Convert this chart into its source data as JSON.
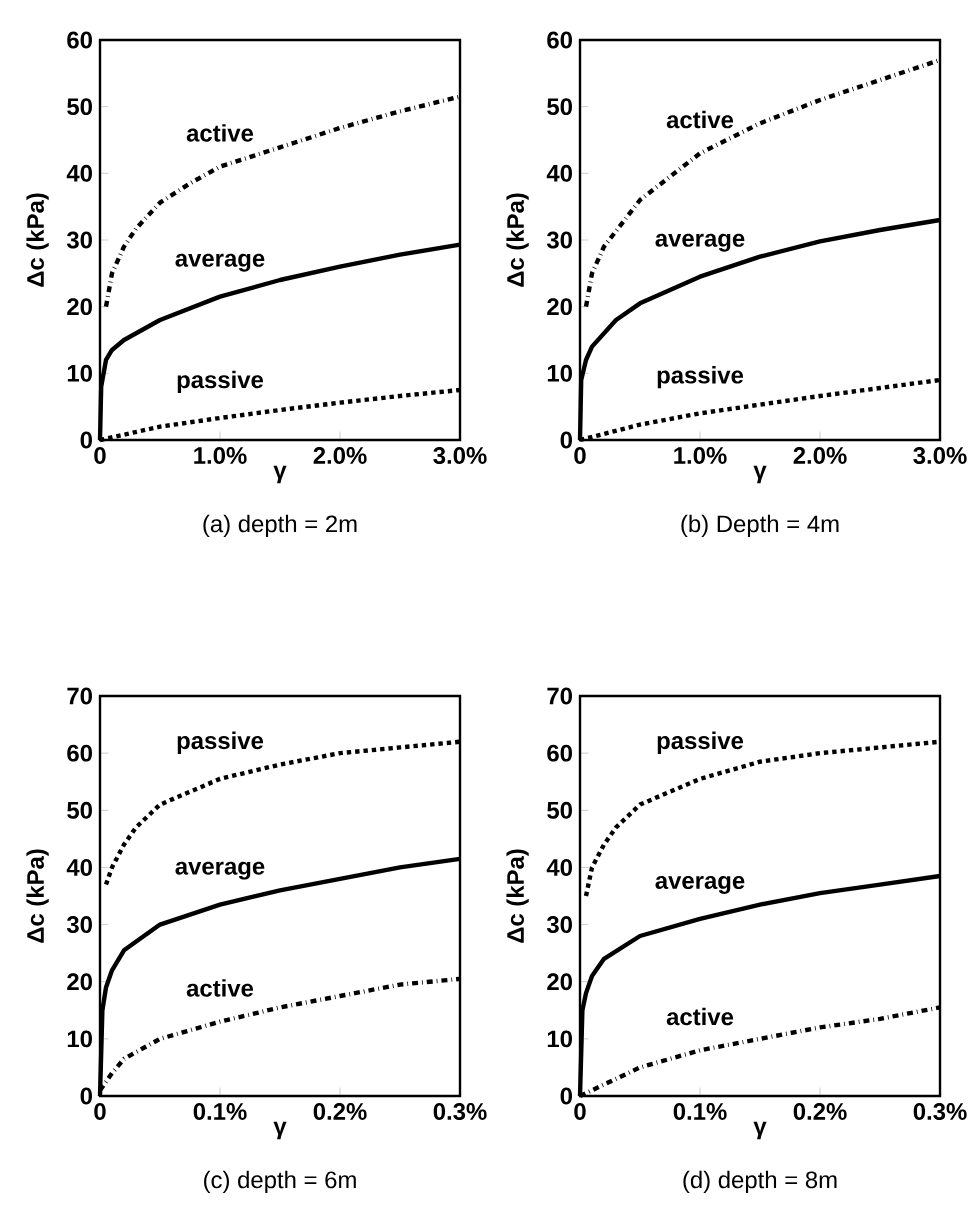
{
  "chart_data": [
    {
      "type": "line",
      "title": "(a) depth = 2m",
      "xlabel": "γ",
      "ylabel": "Δc (kPa)",
      "xlim": [
        0,
        3
      ],
      "ylim": [
        0,
        60
      ],
      "xticks": [
        0,
        {
          "value": 1,
          "label": "1.0%"
        },
        {
          "value": 2,
          "label": "2.0%"
        },
        {
          "value": 3,
          "label": "3.0%"
        }
      ],
      "yticks": [
        0,
        10,
        20,
        30,
        40,
        50,
        60
      ],
      "series": [
        {
          "name": "active",
          "color": "#000000",
          "line_style": "dashdot",
          "x": [
            0.05,
            0.1,
            0.2,
            0.3,
            0.5,
            0.75,
            1,
            1.5,
            2,
            2.5,
            3
          ],
          "values": [
            20,
            25,
            29,
            31.7,
            35.6,
            38.5,
            41,
            43.9,
            46.8,
            49.3,
            51.5
          ]
        },
        {
          "name": "average",
          "color": "#000000",
          "line_style": "solid",
          "x": [
            0,
            0.01,
            0.05,
            0.1,
            0.2,
            0.5,
            1,
            1.5,
            2,
            2.5,
            3
          ],
          "values": [
            0,
            8,
            12,
            13.5,
            15,
            18,
            21.5,
            24,
            26,
            27.8,
            29.3
          ]
        },
        {
          "name": "passive",
          "color": "#000000",
          "line_style": "dotted",
          "x": [
            0,
            0.5,
            1,
            1.5,
            2,
            2.5,
            3
          ],
          "values": [
            0,
            2,
            3.3,
            4.5,
            5.6,
            6.6,
            7.5
          ]
        }
      ]
    },
    {
      "type": "line",
      "title": "(b) Depth = 4m",
      "xlabel": "γ",
      "ylabel": "Δc (kPa)",
      "xlim": [
        0,
        3
      ],
      "ylim": [
        0,
        60
      ],
      "xticks": [
        0,
        {
          "value": 1,
          "label": "1.0%"
        },
        {
          "value": 2,
          "label": "2.0%"
        },
        {
          "value": 3,
          "label": "3.0%"
        }
      ],
      "yticks": [
        0,
        10,
        20,
        30,
        40,
        50,
        60
      ],
      "series": [
        {
          "name": "active",
          "color": "#000000",
          "line_style": "dashdot",
          "x": [
            0.05,
            0.1,
            0.2,
            0.5,
            1,
            1.5,
            2,
            2.5,
            3
          ],
          "values": [
            20,
            25,
            29,
            36,
            43,
            47.5,
            51,
            54,
            57
          ]
        },
        {
          "name": "average",
          "color": "#000000",
          "line_style": "solid",
          "x": [
            0,
            0.01,
            0.05,
            0.1,
            0.3,
            0.5,
            1,
            1.5,
            2,
            2.5,
            3
          ],
          "values": [
            0,
            9,
            12,
            14,
            18,
            20.5,
            24.5,
            27.5,
            29.8,
            31.5,
            33
          ]
        },
        {
          "name": "passive",
          "color": "#000000",
          "line_style": "dotted",
          "x": [
            0,
            0.5,
            1,
            1.5,
            2,
            2.5,
            3
          ],
          "values": [
            0,
            2.3,
            4,
            5.3,
            6.6,
            7.8,
            9
          ]
        }
      ]
    },
    {
      "type": "line",
      "title": "(c) depth = 6m",
      "xlabel": "γ",
      "ylabel": "Δc (kPa)",
      "xlim": [
        0,
        0.3
      ],
      "ylim": [
        0,
        70
      ],
      "xticks": [
        0,
        {
          "value": 0.1,
          "label": "0.1%"
        },
        {
          "value": 0.2,
          "label": "0.2%"
        },
        {
          "value": 0.3,
          "label": "0.3%"
        }
      ],
      "yticks": [
        0,
        10,
        20,
        30,
        40,
        50,
        60,
        70
      ],
      "series": [
        {
          "name": "passive",
          "color": "#000000",
          "line_style": "dotted",
          "x": [
            0.005,
            0.01,
            0.02,
            0.03,
            0.05,
            0.1,
            0.15,
            0.2,
            0.25,
            0.3
          ],
          "values": [
            37,
            40,
            44,
            47,
            51,
            55.5,
            58,
            60,
            61,
            62
          ]
        },
        {
          "name": "average",
          "color": "#000000",
          "line_style": "solid",
          "x": [
            0,
            0.002,
            0.005,
            0.01,
            0.02,
            0.05,
            0.1,
            0.15,
            0.2,
            0.25,
            0.3
          ],
          "values": [
            0,
            15,
            19,
            22,
            25.5,
            30,
            33.5,
            36,
            38,
            40,
            41.5
          ]
        },
        {
          "name": "active",
          "color": "#000000",
          "line_style": "dashdot",
          "x": [
            0,
            0.01,
            0.02,
            0.05,
            0.1,
            0.15,
            0.2,
            0.25,
            0.3
          ],
          "values": [
            1,
            4,
            6.5,
            10,
            13,
            15.5,
            17.5,
            19.5,
            20.5
          ]
        }
      ]
    },
    {
      "type": "line",
      "title": "(d) depth = 8m",
      "xlabel": "γ",
      "ylabel": "Δc (kPa)",
      "xlim": [
        0,
        0.3
      ],
      "ylim": [
        0,
        70
      ],
      "xticks": [
        0,
        {
          "value": 0.1,
          "label": "0.1%"
        },
        {
          "value": 0.2,
          "label": "0.2%"
        },
        {
          "value": 0.3,
          "label": "0.3%"
        }
      ],
      "yticks": [
        0,
        10,
        20,
        30,
        40,
        50,
        60,
        70
      ],
      "series": [
        {
          "name": "passive",
          "color": "#000000",
          "line_style": "dotted",
          "x": [
            0.005,
            0.01,
            0.02,
            0.03,
            0.05,
            0.1,
            0.15,
            0.2,
            0.25,
            0.3
          ],
          "values": [
            35,
            40,
            44,
            47,
            51,
            55.5,
            58.5,
            60,
            61,
            62
          ]
        },
        {
          "name": "average",
          "color": "#000000",
          "line_style": "solid",
          "x": [
            0,
            0.002,
            0.005,
            0.01,
            0.02,
            0.05,
            0.1,
            0.15,
            0.2,
            0.25,
            0.3
          ],
          "values": [
            0,
            15,
            18,
            21,
            24,
            28,
            31,
            33.5,
            35.5,
            37,
            38.5
          ]
        },
        {
          "name": "active",
          "color": "#000000",
          "line_style": "dashdot",
          "x": [
            0,
            0.02,
            0.05,
            0.1,
            0.15,
            0.2,
            0.25,
            0.3
          ],
          "values": [
            0,
            2,
            5,
            8,
            10,
            12,
            13.5,
            15.5
          ]
        }
      ]
    }
  ]
}
